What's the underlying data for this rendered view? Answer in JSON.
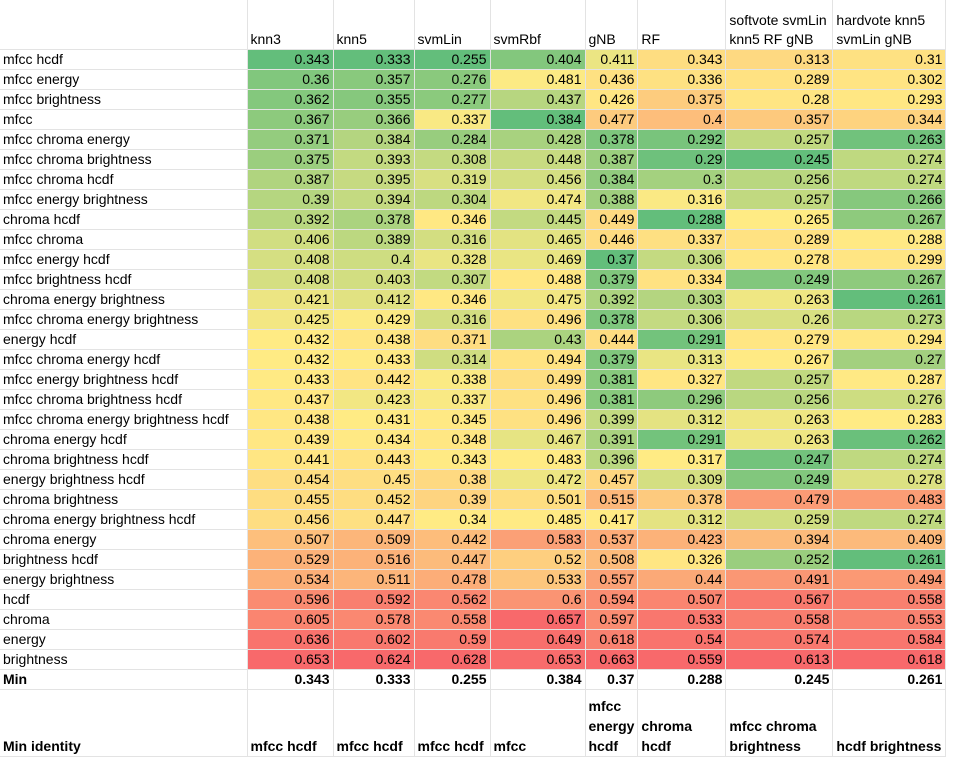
{
  "headers": [
    "",
    "knn3",
    "knn5",
    "svmLin",
    "svmRbf",
    "gNB",
    "RF",
    "softvote svmLin knn5 RF gNB",
    "hardvote knn5 svmLin gNB"
  ],
  "rows": [
    {
      "label": "mfcc hcdf",
      "values": [
        "0.343",
        "0.333",
        "0.255",
        "0.404",
        "0.411",
        "0.343",
        "0.313",
        "0.31"
      ]
    },
    {
      "label": "mfcc energy",
      "values": [
        "0.36",
        "0.357",
        "0.276",
        "0.481",
        "0.436",
        "0.336",
        "0.289",
        "0.302"
      ]
    },
    {
      "label": "mfcc brightness",
      "values": [
        "0.362",
        "0.355",
        "0.277",
        "0.437",
        "0.426",
        "0.375",
        "0.28",
        "0.293"
      ]
    },
    {
      "label": "mfcc",
      "values": [
        "0.367",
        "0.366",
        "0.337",
        "0.384",
        "0.477",
        "0.4",
        "0.357",
        "0.344"
      ]
    },
    {
      "label": "mfcc chroma energy",
      "values": [
        "0.371",
        "0.384",
        "0.284",
        "0.428",
        "0.378",
        "0.292",
        "0.257",
        "0.263"
      ]
    },
    {
      "label": "mfcc chroma brightness",
      "values": [
        "0.375",
        "0.393",
        "0.308",
        "0.448",
        "0.387",
        "0.29",
        "0.245",
        "0.274"
      ]
    },
    {
      "label": "mfcc chroma hcdf",
      "values": [
        "0.387",
        "0.395",
        "0.319",
        "0.456",
        "0.384",
        "0.3",
        "0.256",
        "0.274"
      ]
    },
    {
      "label": "mfcc energy brightness",
      "values": [
        "0.39",
        "0.394",
        "0.304",
        "0.474",
        "0.388",
        "0.316",
        "0.257",
        "0.266"
      ]
    },
    {
      "label": "chroma hcdf",
      "values": [
        "0.392",
        "0.378",
        "0.346",
        "0.445",
        "0.449",
        "0.288",
        "0.265",
        "0.267"
      ]
    },
    {
      "label": "mfcc chroma",
      "values": [
        "0.406",
        "0.389",
        "0.316",
        "0.465",
        "0.446",
        "0.337",
        "0.289",
        "0.288"
      ]
    },
    {
      "label": "mfcc energy hcdf",
      "values": [
        "0.408",
        "0.4",
        "0.328",
        "0.469",
        "0.37",
        "0.306",
        "0.278",
        "0.299"
      ]
    },
    {
      "label": "mfcc brightness hcdf",
      "values": [
        "0.408",
        "0.403",
        "0.307",
        "0.488",
        "0.379",
        "0.334",
        "0.249",
        "0.267"
      ]
    },
    {
      "label": "chroma energy brightness",
      "values": [
        "0.421",
        "0.412",
        "0.346",
        "0.475",
        "0.392",
        "0.303",
        "0.263",
        "0.261"
      ]
    },
    {
      "label": "mfcc chroma energy brightness",
      "values": [
        "0.425",
        "0.429",
        "0.316",
        "0.496",
        "0.378",
        "0.306",
        "0.26",
        "0.273"
      ]
    },
    {
      "label": "energy hcdf",
      "values": [
        "0.432",
        "0.438",
        "0.371",
        "0.43",
        "0.444",
        "0.291",
        "0.279",
        "0.294"
      ]
    },
    {
      "label": "mfcc chroma energy hcdf",
      "values": [
        "0.432",
        "0.433",
        "0.314",
        "0.494",
        "0.379",
        "0.313",
        "0.267",
        "0.27"
      ]
    },
    {
      "label": "mfcc energy brightness hcdf",
      "values": [
        "0.433",
        "0.442",
        "0.338",
        "0.499",
        "0.381",
        "0.327",
        "0.257",
        "0.287"
      ]
    },
    {
      "label": "mfcc chroma brightness hcdf",
      "values": [
        "0.437",
        "0.423",
        "0.337",
        "0.496",
        "0.381",
        "0.296",
        "0.256",
        "0.276"
      ]
    },
    {
      "label": "mfcc chroma energy brightness hcdf",
      "values": [
        "0.438",
        "0.431",
        "0.345",
        "0.496",
        "0.399",
        "0.312",
        "0.263",
        "0.283"
      ]
    },
    {
      "label": "chroma energy hcdf",
      "values": [
        "0.439",
        "0.434",
        "0.348",
        "0.467",
        "0.391",
        "0.291",
        "0.263",
        "0.262"
      ]
    },
    {
      "label": "chroma brightness hcdf",
      "values": [
        "0.441",
        "0.443",
        "0.343",
        "0.483",
        "0.396",
        "0.317",
        "0.247",
        "0.274"
      ]
    },
    {
      "label": "energy brightness hcdf",
      "values": [
        "0.454",
        "0.45",
        "0.38",
        "0.472",
        "0.457",
        "0.309",
        "0.249",
        "0.278"
      ]
    },
    {
      "label": "chroma brightness",
      "values": [
        "0.455",
        "0.452",
        "0.39",
        "0.501",
        "0.515",
        "0.378",
        "0.479",
        "0.483"
      ]
    },
    {
      "label": "chroma energy brightness hcdf",
      "values": [
        "0.456",
        "0.447",
        "0.34",
        "0.485",
        "0.417",
        "0.312",
        "0.259",
        "0.274"
      ]
    },
    {
      "label": "chroma energy",
      "values": [
        "0.507",
        "0.509",
        "0.442",
        "0.583",
        "0.537",
        "0.423",
        "0.394",
        "0.409"
      ]
    },
    {
      "label": "brightness hcdf",
      "values": [
        "0.529",
        "0.516",
        "0.447",
        "0.52",
        "0.508",
        "0.326",
        "0.252",
        "0.261"
      ]
    },
    {
      "label": "energy brightness",
      "values": [
        "0.534",
        "0.511",
        "0.478",
        "0.533",
        "0.557",
        "0.44",
        "0.491",
        "0.494"
      ]
    },
    {
      "label": "hcdf",
      "values": [
        "0.596",
        "0.592",
        "0.562",
        "0.6",
        "0.594",
        "0.507",
        "0.567",
        "0.558"
      ]
    },
    {
      "label": "chroma",
      "values": [
        "0.605",
        "0.578",
        "0.558",
        "0.657",
        "0.597",
        "0.533",
        "0.558",
        "0.553"
      ]
    },
    {
      "label": "energy",
      "values": [
        "0.636",
        "0.602",
        "0.59",
        "0.649",
        "0.618",
        "0.54",
        "0.574",
        "0.584"
      ]
    },
    {
      "label": "brightness",
      "values": [
        "0.653",
        "0.624",
        "0.628",
        "0.653",
        "0.663",
        "0.559",
        "0.613",
        "0.618"
      ]
    }
  ],
  "min_row": {
    "label": "Min",
    "values": [
      "0.343",
      "0.333",
      "0.255",
      "0.384",
      "0.37",
      "0.288",
      "0.245",
      "0.261"
    ]
  },
  "identity_row": {
    "label": "Min identity",
    "values": [
      "mfcc hcdf",
      "mfcc hcdf",
      "mfcc hcdf",
      "mfcc",
      "mfcc energy hcdf",
      "chroma hcdf",
      "mfcc chroma brightness",
      "hcdf brightness"
    ]
  },
  "color_scale": {
    "low": "#63be7b",
    "mid": "#ffeb84",
    "high": "#f8696b"
  }
}
